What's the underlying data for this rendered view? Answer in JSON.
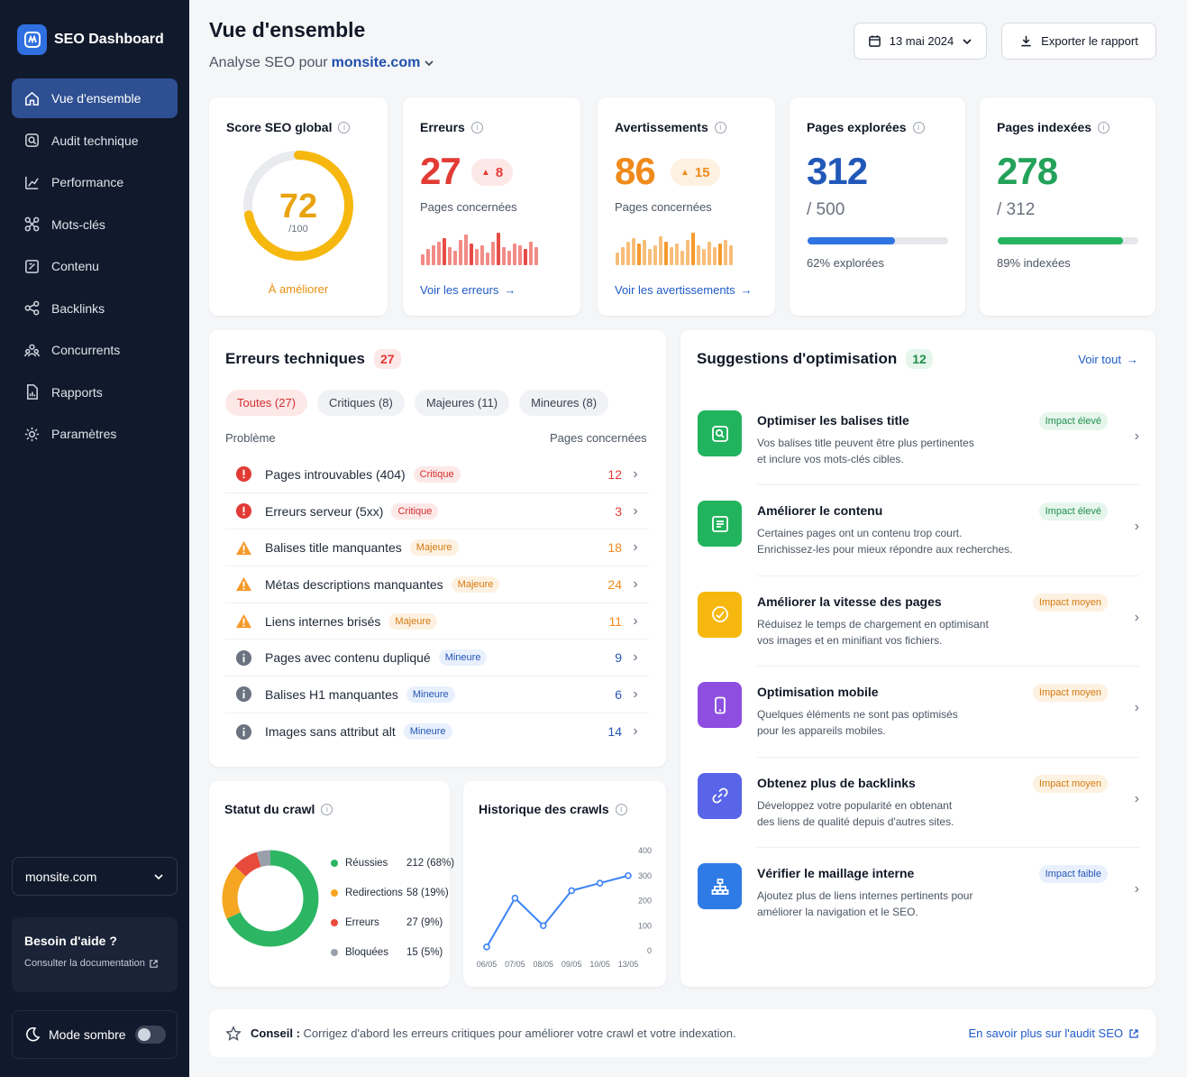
{
  "brand": {
    "name": "SEO Dashboard"
  },
  "nav": [
    "Vue d'ensemble",
    "Audit technique",
    "Performance",
    "Mots-clés",
    "Contenu",
    "Backlinks",
    "Concurrents",
    "Rapports",
    "Paramètres"
  ],
  "site_select": "monsite.com",
  "help": {
    "title": "Besoin d'aide ?",
    "link": "Consulter la documentation"
  },
  "dark_mode": {
    "label": "Mode sombre",
    "enabled": false
  },
  "header": {
    "title": "Vue d'ensemble",
    "sub_prefix": "Analyse SEO pour",
    "site": "monsite.com",
    "date": "13 mai 2024",
    "export": "Exporter le rapport"
  },
  "stats": {
    "score": {
      "title": "Score SEO global",
      "value": "72",
      "max": "/100",
      "status": "À améliorer",
      "fraction": 0.72
    },
    "errors": {
      "title": "Erreurs",
      "value": "27",
      "delta": "8",
      "sub": "Pages concernées",
      "link": "Voir les erreurs"
    },
    "warnings": {
      "title": "Avertissements",
      "value": "86",
      "delta": "15",
      "sub": "Pages concernées",
      "link": "Voir les avertissements"
    },
    "explored": {
      "title": "Pages explorées",
      "value": "312",
      "total": "/ 500",
      "pct_label": "62% explorées",
      "fraction": 0.62
    },
    "indexed": {
      "title": "Pages indexées",
      "value": "278",
      "total": "/ 312",
      "pct_label": "89% indexées",
      "fraction": 0.89
    }
  },
  "errors_section": {
    "title": "Erreurs techniques",
    "count": "27",
    "filters": [
      "Toutes (27)",
      "Critiques (8)",
      "Majeures (11)",
      "Mineures (8)"
    ],
    "col_problem": "Problème",
    "col_pages": "Pages concernées",
    "rows": [
      {
        "label": "Pages introuvables (404)",
        "severity": "Critique",
        "count": "12"
      },
      {
        "label": "Erreurs serveur (5xx)",
        "severity": "Critique",
        "count": "3"
      },
      {
        "label": "Balises title manquantes",
        "severity": "Majeure",
        "count": "18"
      },
      {
        "label": "Métas descriptions manquantes",
        "severity": "Majeure",
        "count": "24"
      },
      {
        "label": "Liens internes brisés",
        "severity": "Majeure",
        "count": "11"
      },
      {
        "label": "Pages avec contenu dupliqué",
        "severity": "Mineure",
        "count": "9"
      },
      {
        "label": "Balises H1 manquantes",
        "severity": "Mineure",
        "count": "6"
      },
      {
        "label": "Images sans attribut alt",
        "severity": "Mineure",
        "count": "14"
      }
    ]
  },
  "suggestions": {
    "title": "Suggestions d'optimisation",
    "count": "12",
    "view_all": "Voir tout",
    "items": [
      {
        "title": "Optimiser les balises title",
        "desc1": "Vos balises title peuvent être plus pertinentes",
        "desc2": "et inclure vos mots-clés cibles.",
        "impact": "Impact élevé",
        "color": "#22b35e",
        "icon": "search-icon"
      },
      {
        "title": "Améliorer le contenu",
        "desc1": "Certaines pages ont un contenu trop court.",
        "desc2": "Enrichissez-les pour mieux répondre aux recherches.",
        "impact": "Impact élevé",
        "color": "#22b35e",
        "icon": "document-icon"
      },
      {
        "title": "Améliorer la vitesse des pages",
        "desc1": "Réduisez le temps de chargement en optimisant",
        "desc2": "vos images et en minifiant vos fichiers.",
        "impact": "Impact moyen",
        "color": "#f6b80e",
        "icon": "speed-icon"
      },
      {
        "title": "Optimisation mobile",
        "desc1": "Quelques éléments ne sont pas optimisés",
        "desc2": "pour les appareils mobiles.",
        "impact": "Impact moyen",
        "color": "#8e4fe0",
        "icon": "mobile-icon"
      },
      {
        "title": "Obtenez plus de backlinks",
        "desc1": "Développez votre popularité en obtenant",
        "desc2": "des liens de qualité depuis d'autres sites.",
        "impact": "Impact moyen",
        "color": "#5865e8",
        "icon": "link-icon"
      },
      {
        "title": "Vérifier le maillage interne",
        "desc1": "Ajoutez plus de liens internes pertinents pour",
        "desc2": "améliorer la navigation et le SEO.",
        "impact": "Impact faible",
        "color": "#2e7be6",
        "icon": "sitemap-icon"
      }
    ]
  },
  "crawl_status": {
    "title": "Statut du crawl"
  },
  "crawl_history": {
    "title": "Historique des crawls"
  },
  "chart_data": [
    {
      "type": "pie",
      "title": "Statut du crawl",
      "labels": [
        "Réussies",
        "Redirections",
        "Erreurs",
        "Bloquées"
      ],
      "values": [
        212,
        58,
        27,
        15
      ],
      "value_labels": [
        "212 (68%)",
        "58 (19%)",
        "27 (9%)",
        "15 (5%)"
      ],
      "colors": [
        "#2cb663",
        "#f6a623",
        "#e84b3c",
        "#9aa0ab"
      ]
    },
    {
      "type": "line",
      "title": "Historique des crawls",
      "x": [
        "06/05",
        "07/05",
        "08/05",
        "09/05",
        "10/05",
        "13/05"
      ],
      "y": [
        15,
        210,
        100,
        240,
        270,
        300
      ],
      "ylim": [
        0,
        400
      ],
      "yticks": [
        "0",
        "100",
        "200",
        "300",
        "400"
      ],
      "color": "#3b82f6"
    }
  ],
  "tip": {
    "label": "Conseil :",
    "text": "Corrigez d'abord les erreurs critiques pour améliorer votre crawl et votre indexation.",
    "link": "En savoir plus sur l'audit SEO"
  }
}
